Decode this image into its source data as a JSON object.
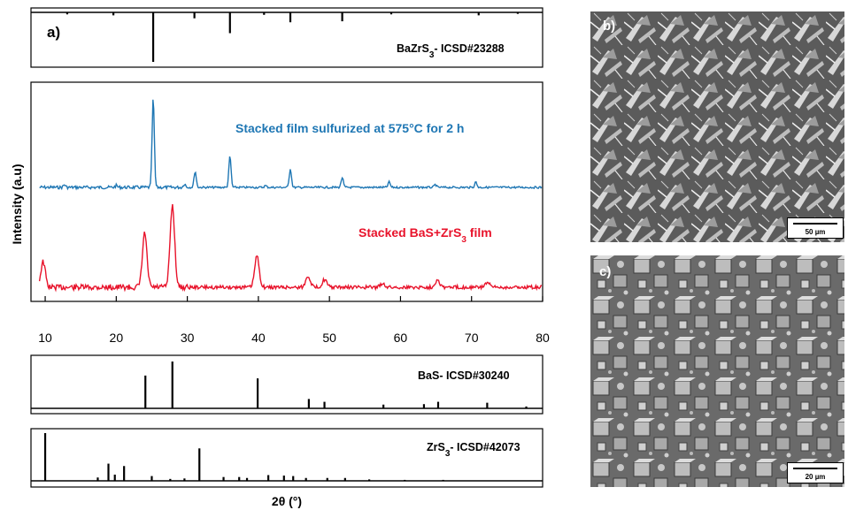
{
  "chart_data": {
    "type": "line",
    "panel_label": "a)",
    "xlabel": "2θ (°)",
    "ylabel": "Intensity (a.u)",
    "xlim": [
      8,
      80
    ],
    "xticks": [
      10,
      20,
      30,
      40,
      50,
      60,
      70,
      80
    ],
    "series": [
      {
        "name": "Stacked film sulfurized at 575°C for 2 h",
        "color": "#1f77b4",
        "peaks": [
          [
            12.7,
            0.03
          ],
          [
            20.0,
            0.02
          ],
          [
            25.2,
            1.0
          ],
          [
            29.6,
            0.04
          ],
          [
            31.1,
            0.18
          ],
          [
            36.0,
            0.35
          ],
          [
            41.0,
            0.02
          ],
          [
            44.5,
            0.21
          ],
          [
            51.8,
            0.11
          ],
          [
            58.4,
            0.06
          ],
          [
            64.9,
            0.03
          ],
          [
            70.6,
            0.06
          ]
        ]
      },
      {
        "name": "Stacked BaS+ZrS3 film",
        "color": "#e8132b",
        "peaks": [
          [
            9.7,
            0.27
          ],
          [
            24.0,
            0.57
          ],
          [
            27.9,
            0.87
          ],
          [
            39.8,
            0.33
          ],
          [
            47.0,
            0.12
          ],
          [
            49.3,
            0.08
          ],
          [
            57.5,
            0.04
          ],
          [
            65.2,
            0.08
          ],
          [
            72.2,
            0.05
          ]
        ]
      }
    ],
    "references": [
      {
        "name": "BaZrS3- ICSD#23288",
        "sticks": [
          [
            13.1,
            0.04
          ],
          [
            19.6,
            0.06
          ],
          [
            25.2,
            1.0
          ],
          [
            31.0,
            0.12
          ],
          [
            36.0,
            0.42
          ],
          [
            40.8,
            0.05
          ],
          [
            44.5,
            0.2
          ],
          [
            51.8,
            0.18
          ],
          [
            58.7,
            0.04
          ],
          [
            71.0,
            0.06
          ],
          [
            76.5,
            0.03
          ]
        ]
      },
      {
        "name": "BaS- ICSD#30240",
        "sticks": [
          [
            24.1,
            0.7
          ],
          [
            27.9,
            1.0
          ],
          [
            39.9,
            0.64
          ],
          [
            47.1,
            0.2
          ],
          [
            49.3,
            0.14
          ],
          [
            57.6,
            0.08
          ],
          [
            63.3,
            0.09
          ],
          [
            65.3,
            0.14
          ],
          [
            72.2,
            0.12
          ],
          [
            77.7,
            0.04
          ]
        ]
      },
      {
        "name": "ZrS3- ICSD#42073",
        "sticks": [
          [
            10.0,
            1.0
          ],
          [
            17.4,
            0.07
          ],
          [
            18.9,
            0.36
          ],
          [
            19.8,
            0.13
          ],
          [
            21.1,
            0.31
          ],
          [
            25.0,
            0.1
          ],
          [
            27.6,
            0.04
          ],
          [
            29.6,
            0.05
          ],
          [
            31.7,
            0.68
          ],
          [
            35.1,
            0.08
          ],
          [
            37.3,
            0.08
          ],
          [
            38.4,
            0.06
          ],
          [
            41.4,
            0.12
          ],
          [
            43.6,
            0.11
          ],
          [
            44.9,
            0.1
          ],
          [
            46.7,
            0.06
          ],
          [
            49.7,
            0.06
          ],
          [
            52.2,
            0.06
          ],
          [
            55.6,
            0.03
          ],
          [
            60.6,
            0.02
          ],
          [
            66.0,
            0.02
          ]
        ]
      }
    ]
  },
  "images": {
    "b": {
      "label": "b)",
      "scale": "50 µm"
    },
    "c": {
      "label": "c)",
      "scale": "20 µm"
    }
  }
}
